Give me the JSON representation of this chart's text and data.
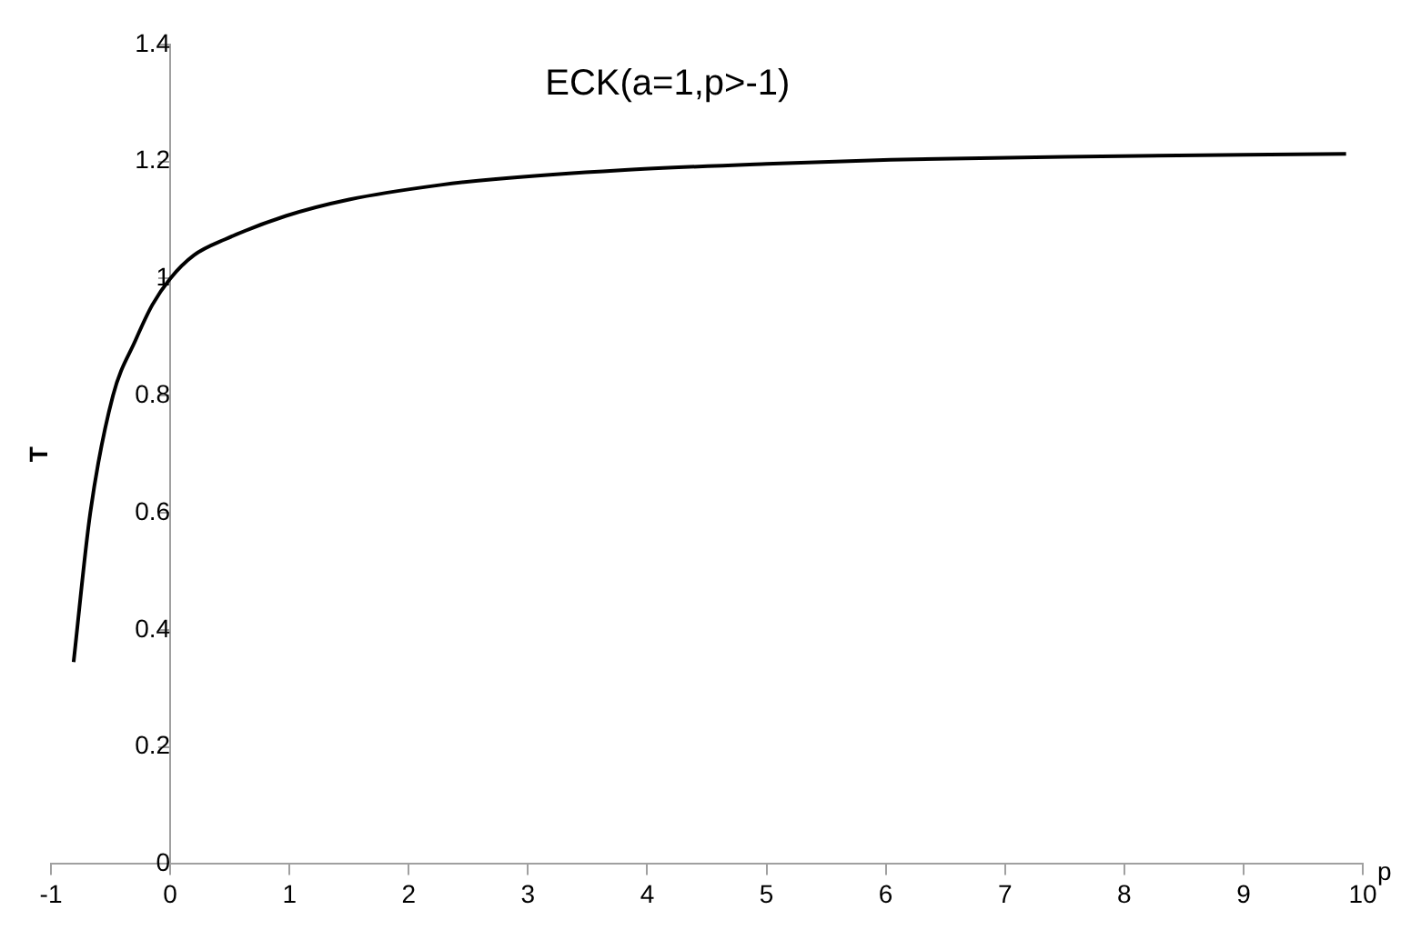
{
  "chart_data": {
    "type": "line",
    "title": "ECK(a=1,p>-1)",
    "xlabel": "p",
    "ylabel": "T",
    "series": [
      {
        "color": "#000000",
        "x": [
          -0.81,
          -0.67,
          -0.48,
          -0.29,
          -0.15,
          0,
          0.2,
          0.46,
          0.97,
          1.5,
          2.27,
          2.73,
          3.78,
          5,
          6.04,
          7.5,
          9.86
        ],
        "values": [
          0.345,
          0.6,
          0.8,
          0.895,
          0.955,
          1,
          1.04,
          1.067,
          1.107,
          1.135,
          1.16,
          1.17,
          1.185,
          1.196,
          1.203,
          1.208,
          1.213
        ]
      }
    ],
    "xlim": [
      -1,
      10
    ],
    "xticks": [
      -1,
      0,
      1,
      2,
      3,
      4,
      5,
      6,
      7,
      8,
      9,
      10
    ],
    "ylim": [
      0,
      1.4
    ],
    "yticks": [
      0,
      0.2,
      0.4,
      0.6,
      0.8,
      1,
      1.2,
      1.4
    ],
    "grid": false,
    "legend": false,
    "marker": "none",
    "line_style": "solid"
  }
}
